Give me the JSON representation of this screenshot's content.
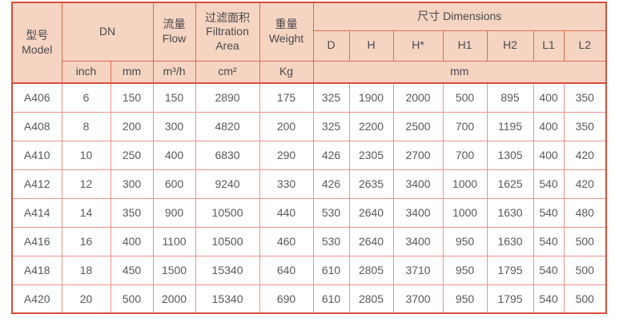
{
  "table": {
    "header": {
      "model": "型号\nModel",
      "dn": "DN",
      "flow": "流量\nFlow",
      "filtration": "过滤面积\nFiltration\nArea",
      "weight": "重量\nWeight",
      "dimensions": "尺寸 Dimensions",
      "dim_cols": [
        "D",
        "H",
        "H*",
        "H1",
        "H2",
        "L1",
        "L2"
      ],
      "units": {
        "inch": "inch",
        "mm": "mm",
        "flow": "m³/h",
        "filtration": "cm²",
        "weight": "Kg",
        "dims": "mm"
      }
    },
    "rows": [
      [
        "A406",
        "6",
        "150",
        "150",
        "2890",
        "175",
        "325",
        "1900",
        "2000",
        "500",
        "895",
        "400",
        "350"
      ],
      [
        "A408",
        "8",
        "200",
        "300",
        "4820",
        "200",
        "325",
        "2200",
        "2500",
        "700",
        "1195",
        "400",
        "350"
      ],
      [
        "A410",
        "10",
        "250",
        "400",
        "6830",
        "290",
        "426",
        "2305",
        "2700",
        "700",
        "1305",
        "400",
        "420"
      ],
      [
        "A412",
        "12",
        "300",
        "600",
        "9240",
        "330",
        "426",
        "2635",
        "3400",
        "1000",
        "1625",
        "540",
        "420"
      ],
      [
        "A414",
        "14",
        "350",
        "900",
        "10500",
        "440",
        "530",
        "2640",
        "3400",
        "1000",
        "1630",
        "540",
        "480"
      ],
      [
        "A416",
        "16",
        "400",
        "1100",
        "10500",
        "460",
        "530",
        "2640",
        "3400",
        "950",
        "1630",
        "540",
        "500"
      ],
      [
        "A418",
        "18",
        "450",
        "1500",
        "15340",
        "640",
        "610",
        "2805",
        "3710",
        "950",
        "1795",
        "540",
        "500"
      ],
      [
        "A420",
        "20",
        "500",
        "2000",
        "15340",
        "690",
        "610",
        "2805",
        "3700",
        "950",
        "1795",
        "540",
        "500"
      ]
    ]
  },
  "colors": {
    "header_bg": "#f5d4c2",
    "header_border": "#e36b4c",
    "outer_border": "#d94e3c",
    "body_grid": "#ee918b",
    "header_text": "#4a4a4a",
    "body_text": "#595959"
  }
}
